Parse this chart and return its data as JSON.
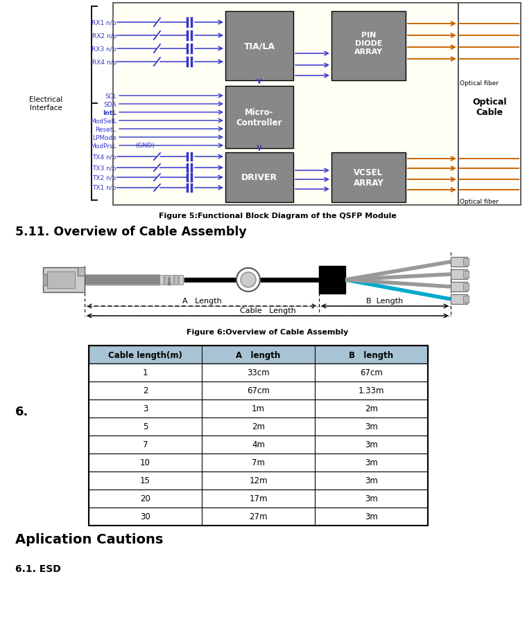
{
  "figure5_caption": "Figure 5:Functional Block Diagram of the QSFP Module",
  "section_511_title": "5.11. Overview of Cable Assembly",
  "figure6_caption": "Figure 6:Overview of Cable Assembly",
  "section6_label": "6.",
  "table_headers": [
    "Cable length(m)",
    "A   length",
    "B   length"
  ],
  "table_rows": [
    [
      "1",
      "33cm",
      "67cm"
    ],
    [
      "2",
      "67cm",
      "1.33m"
    ],
    [
      "3",
      "1m",
      "2m"
    ],
    [
      "5",
      "2m",
      "3m"
    ],
    [
      "7",
      "4m",
      "3m"
    ],
    [
      "10",
      "7m",
      "3m"
    ],
    [
      "15",
      "12m",
      "3m"
    ],
    [
      "20",
      "17m",
      "3m"
    ],
    [
      "30",
      "27m",
      "3m"
    ]
  ],
  "section_aplication": "Aplication Cautions",
  "section_61": "6.1. ESD",
  "bg_color": "#ffffff",
  "header_bg": "#a8c4d4",
  "yellow_bg": "#fffff0",
  "rx_labels": [
    "RX1 n/p",
    "RX2 n/p",
    "RX3 n/p",
    "RX4 n/p"
  ],
  "ctrl_labels": [
    "SCL",
    "SDA",
    "IntL",
    "ModSelL",
    "ResetL",
    "LPMode",
    "ModPrsL"
  ],
  "tx_labels": [
    "TX4 n/p",
    "TX3 n/p",
    "TX2 n/p",
    "TX1 n/p"
  ],
  "elec_label": "Electrical\nInterface",
  "optical_label": "Optical\nCable",
  "optical_fiber_top": "Optical fiber",
  "optical_fiber_bot": "Optical fiber",
  "gnd_label": "(GND)"
}
